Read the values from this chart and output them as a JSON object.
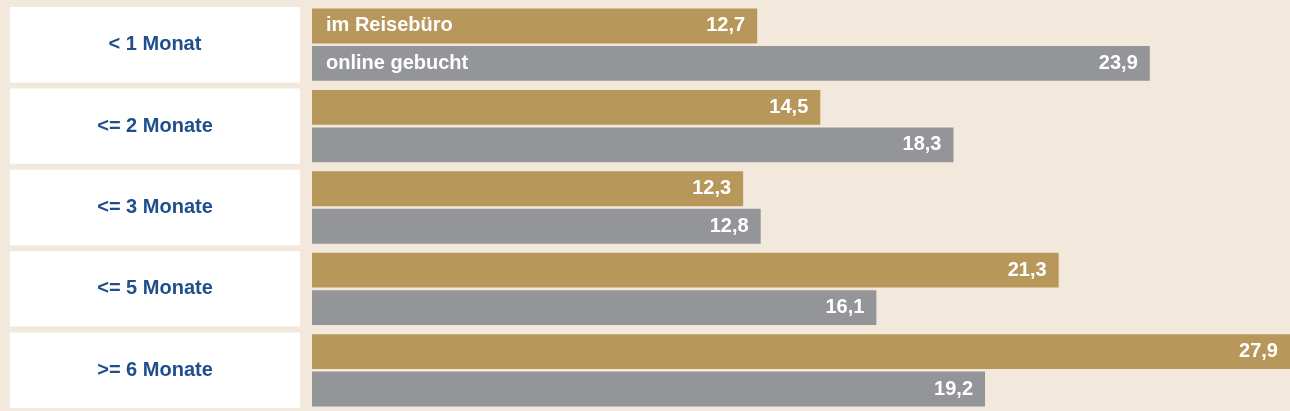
{
  "chart_data": {
    "type": "bar",
    "orientation": "horizontal",
    "categories": [
      "< 1 Monat",
      "<= 2 Monate",
      "<= 3 Monate",
      "<= 5 Monate",
      ">= 6 Monate"
    ],
    "series": [
      {
        "name": "im Reisebüro",
        "color": "#b8975a",
        "values": [
          12.7,
          14.5,
          12.3,
          21.3,
          27.9
        ],
        "value_labels": [
          "12,7",
          "14,5",
          "12,3",
          "21,3",
          "27,9"
        ]
      },
      {
        "name": "online gebucht",
        "color": "#939598",
        "values": [
          23.9,
          18.3,
          12.8,
          16.1,
          19.2
        ],
        "value_labels": [
          "23,9",
          "18,3",
          "12,8",
          "16,1",
          "19,2"
        ]
      }
    ]
  }
}
